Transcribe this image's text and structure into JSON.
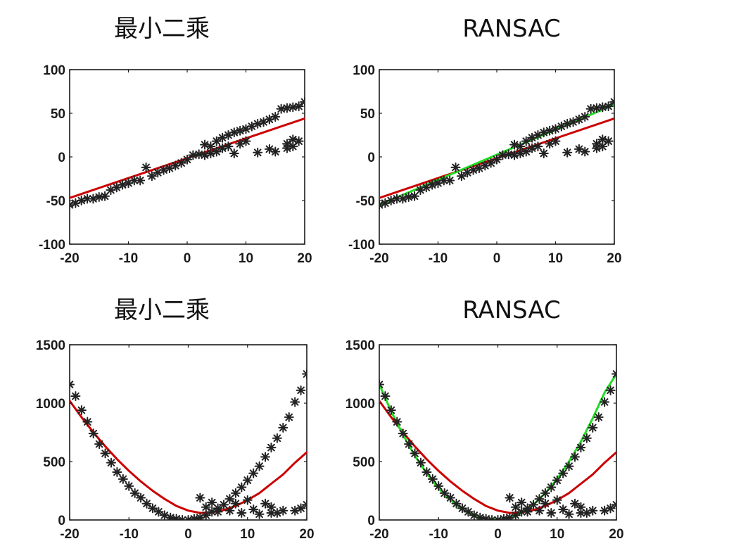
{
  "colors": {
    "ls_fit": "#cc0000",
    "ransac_fit": "#22dd22",
    "points": "#222222"
  },
  "chart_data": [
    {
      "type": "scatter",
      "title": "最小二乘",
      "xlim": [
        -20,
        20
      ],
      "ylim": [
        -100,
        100
      ],
      "xticks": [
        -20,
        -10,
        0,
        10,
        20
      ],
      "yticks": [
        -100,
        -50,
        0,
        50,
        100
      ],
      "points": [
        [
          -20,
          -55
        ],
        [
          -19,
          -53
        ],
        [
          -18,
          -50
        ],
        [
          -17,
          -48
        ],
        [
          -16,
          -48
        ],
        [
          -15,
          -46
        ],
        [
          -14,
          -45
        ],
        [
          -13,
          -38
        ],
        [
          -12,
          -35
        ],
        [
          -11,
          -32
        ],
        [
          -10,
          -30
        ],
        [
          -9,
          -27
        ],
        [
          -8,
          -27
        ],
        [
          -7,
          -12
        ],
        [
          -6,
          -22
        ],
        [
          -5,
          -18
        ],
        [
          -4,
          -15
        ],
        [
          -3,
          -13
        ],
        [
          -2,
          -10
        ],
        [
          -1,
          -7
        ],
        [
          0,
          -3
        ],
        [
          1,
          2
        ],
        [
          2,
          3
        ],
        [
          3,
          14
        ],
        [
          4,
          12
        ],
        [
          5,
          18
        ],
        [
          6,
          22
        ],
        [
          7,
          25
        ],
        [
          8,
          28
        ],
        [
          9,
          30
        ],
        [
          10,
          32
        ],
        [
          11,
          35
        ],
        [
          12,
          38
        ],
        [
          13,
          40
        ],
        [
          14,
          43
        ],
        [
          15,
          46
        ],
        [
          16,
          55
        ],
        [
          17,
          56
        ],
        [
          18,
          57
        ],
        [
          19,
          58
        ],
        [
          20,
          63
        ],
        [
          3,
          2
        ],
        [
          4,
          4
        ],
        [
          5,
          6
        ],
        [
          6,
          10
        ],
        [
          7,
          12
        ],
        [
          8,
          4
        ],
        [
          9,
          15
        ],
        [
          10,
          18
        ],
        [
          12,
          5
        ],
        [
          14,
          9
        ],
        [
          15,
          6
        ],
        [
          17,
          10
        ],
        [
          17,
          15
        ],
        [
          18,
          12
        ],
        [
          18,
          20
        ],
        [
          19,
          18
        ]
      ],
      "series": [
        {
          "x": [
            -20,
            20
          ],
          "y": [
            -47,
            44
          ]
        }
      ]
    },
    {
      "type": "scatter",
      "title": "RANSAC",
      "xlim": [
        -20,
        20
      ],
      "ylim": [
        -100,
        100
      ],
      "xticks": [
        -20,
        -10,
        0,
        10,
        20
      ],
      "yticks": [
        -100,
        -50,
        0,
        50,
        100
      ],
      "points": [
        [
          -20,
          -55
        ],
        [
          -19,
          -53
        ],
        [
          -18,
          -50
        ],
        [
          -17,
          -48
        ],
        [
          -16,
          -48
        ],
        [
          -15,
          -46
        ],
        [
          -14,
          -45
        ],
        [
          -13,
          -38
        ],
        [
          -12,
          -35
        ],
        [
          -11,
          -32
        ],
        [
          -10,
          -30
        ],
        [
          -9,
          -27
        ],
        [
          -8,
          -27
        ],
        [
          -7,
          -12
        ],
        [
          -6,
          -22
        ],
        [
          -5,
          -18
        ],
        [
          -4,
          -15
        ],
        [
          -3,
          -13
        ],
        [
          -2,
          -10
        ],
        [
          -1,
          -7
        ],
        [
          0,
          -3
        ],
        [
          1,
          2
        ],
        [
          2,
          3
        ],
        [
          3,
          14
        ],
        [
          4,
          12
        ],
        [
          5,
          18
        ],
        [
          6,
          22
        ],
        [
          7,
          25
        ],
        [
          8,
          28
        ],
        [
          9,
          30
        ],
        [
          10,
          32
        ],
        [
          11,
          35
        ],
        [
          12,
          38
        ],
        [
          13,
          40
        ],
        [
          14,
          43
        ],
        [
          15,
          46
        ],
        [
          16,
          55
        ],
        [
          17,
          56
        ],
        [
          18,
          57
        ],
        [
          19,
          58
        ],
        [
          20,
          63
        ],
        [
          3,
          2
        ],
        [
          4,
          4
        ],
        [
          5,
          6
        ],
        [
          6,
          10
        ],
        [
          7,
          12
        ],
        [
          8,
          4
        ],
        [
          9,
          15
        ],
        [
          10,
          18
        ],
        [
          12,
          5
        ],
        [
          14,
          9
        ],
        [
          15,
          6
        ],
        [
          17,
          10
        ],
        [
          17,
          15
        ],
        [
          18,
          12
        ],
        [
          18,
          20
        ],
        [
          19,
          18
        ]
      ],
      "series": [
        {
          "x": [
            -20,
            20
          ],
          "y": [
            -47,
            44
          ]
        },
        {
          "x": [
            -20,
            20
          ],
          "y": [
            -55,
            60
          ]
        }
      ]
    },
    {
      "type": "scatter",
      "title": "最小二乘",
      "xlim": [
        -20,
        20
      ],
      "ylim": [
        0,
        1500
      ],
      "xticks": [
        -20,
        -10,
        0,
        10,
        20
      ],
      "yticks": [
        0,
        500,
        1000,
        1500
      ],
      "points": [
        [
          -20,
          1160
        ],
        [
          -19,
          1060
        ],
        [
          -18,
          940
        ],
        [
          -17,
          840
        ],
        [
          -16,
          740
        ],
        [
          -15,
          650
        ],
        [
          -14,
          570
        ],
        [
          -13,
          490
        ],
        [
          -12,
          410
        ],
        [
          -11,
          350
        ],
        [
          -10,
          290
        ],
        [
          -9,
          230
        ],
        [
          -8,
          190
        ],
        [
          -7,
          140
        ],
        [
          -6,
          100
        ],
        [
          -5,
          70
        ],
        [
          -4,
          40
        ],
        [
          -3,
          20
        ],
        [
          -2,
          10
        ],
        [
          -1,
          0
        ],
        [
          0,
          0
        ],
        [
          1,
          10
        ],
        [
          2,
          20
        ],
        [
          3,
          40
        ],
        [
          4,
          70
        ],
        [
          5,
          100
        ],
        [
          6,
          130
        ],
        [
          7,
          180
        ],
        [
          8,
          230
        ],
        [
          9,
          280
        ],
        [
          10,
          340
        ],
        [
          11,
          400
        ],
        [
          12,
          460
        ],
        [
          13,
          540
        ],
        [
          14,
          620
        ],
        [
          15,
          700
        ],
        [
          16,
          790
        ],
        [
          17,
          880
        ],
        [
          18,
          1010
        ],
        [
          19,
          1110
        ],
        [
          20,
          1250
        ],
        [
          2,
          190
        ],
        [
          3,
          110
        ],
        [
          4,
          150
        ],
        [
          5,
          70
        ],
        [
          7,
          80
        ],
        [
          8,
          140
        ],
        [
          9,
          60
        ],
        [
          10,
          170
        ],
        [
          11,
          90
        ],
        [
          12,
          50
        ],
        [
          13,
          140
        ],
        [
          14,
          110
        ],
        [
          14,
          60
        ],
        [
          15,
          60
        ],
        [
          16,
          80
        ],
        [
          18,
          80
        ],
        [
          19,
          100
        ],
        [
          20,
          130
        ]
      ],
      "series": [
        {
          "x": [
            -20,
            -18,
            -16,
            -14,
            -12,
            -10,
            -8,
            -6,
            -4,
            -2,
            0,
            2,
            4,
            6,
            8,
            10,
            12,
            14,
            16,
            18,
            20
          ],
          "y": [
            1020,
            880,
            750,
            630,
            520,
            420,
            330,
            250,
            180,
            120,
            80,
            60,
            65,
            85,
            120,
            170,
            230,
            310,
            390,
            490,
            580
          ]
        }
      ]
    },
    {
      "type": "scatter",
      "title": "RANSAC",
      "xlim": [
        -20,
        20
      ],
      "ylim": [
        0,
        1500
      ],
      "xticks": [
        -20,
        -10,
        0,
        10,
        20
      ],
      "yticks": [
        0,
        500,
        1000,
        1500
      ],
      "points": [
        [
          -20,
          1160
        ],
        [
          -19,
          1060
        ],
        [
          -18,
          940
        ],
        [
          -17,
          840
        ],
        [
          -16,
          740
        ],
        [
          -15,
          650
        ],
        [
          -14,
          570
        ],
        [
          -13,
          490
        ],
        [
          -12,
          410
        ],
        [
          -11,
          350
        ],
        [
          -10,
          290
        ],
        [
          -9,
          230
        ],
        [
          -8,
          190
        ],
        [
          -7,
          140
        ],
        [
          -6,
          100
        ],
        [
          -5,
          70
        ],
        [
          -4,
          40
        ],
        [
          -3,
          20
        ],
        [
          -2,
          10
        ],
        [
          -1,
          0
        ],
        [
          0,
          0
        ],
        [
          1,
          10
        ],
        [
          2,
          20
        ],
        [
          3,
          40
        ],
        [
          4,
          70
        ],
        [
          5,
          100
        ],
        [
          6,
          130
        ],
        [
          7,
          180
        ],
        [
          8,
          230
        ],
        [
          9,
          280
        ],
        [
          10,
          340
        ],
        [
          11,
          400
        ],
        [
          12,
          460
        ],
        [
          13,
          540
        ],
        [
          14,
          620
        ],
        [
          15,
          700
        ],
        [
          16,
          790
        ],
        [
          17,
          880
        ],
        [
          18,
          1010
        ],
        [
          19,
          1110
        ],
        [
          20,
          1250
        ],
        [
          2,
          190
        ],
        [
          3,
          110
        ],
        [
          4,
          150
        ],
        [
          5,
          70
        ],
        [
          7,
          80
        ],
        [
          8,
          140
        ],
        [
          9,
          60
        ],
        [
          10,
          170
        ],
        [
          11,
          90
        ],
        [
          12,
          50
        ],
        [
          13,
          140
        ],
        [
          14,
          110
        ],
        [
          14,
          60
        ],
        [
          15,
          60
        ],
        [
          16,
          80
        ],
        [
          18,
          80
        ],
        [
          19,
          100
        ],
        [
          20,
          130
        ]
      ],
      "series": [
        {
          "x": [
            -20,
            -18,
            -16,
            -14,
            -12,
            -10,
            -8,
            -6,
            -4,
            -2,
            0,
            2,
            4,
            6,
            8,
            10,
            12,
            14,
            16,
            18,
            20
          ],
          "y": [
            1020,
            880,
            750,
            630,
            520,
            420,
            330,
            250,
            180,
            120,
            80,
            60,
            65,
            85,
            120,
            170,
            230,
            310,
            390,
            490,
            580
          ]
        },
        {
          "x": [
            -20,
            -18,
            -16,
            -14,
            -12,
            -10,
            -8,
            -6,
            -4,
            -2,
            0,
            2,
            4,
            6,
            8,
            10,
            12,
            14,
            16,
            18,
            20
          ],
          "y": [
            1160,
            930,
            730,
            550,
            400,
            270,
            170,
            90,
            35,
            5,
            0,
            20,
            60,
            130,
            230,
            350,
            500,
            670,
            870,
            1090,
            1250
          ]
        }
      ]
    }
  ]
}
